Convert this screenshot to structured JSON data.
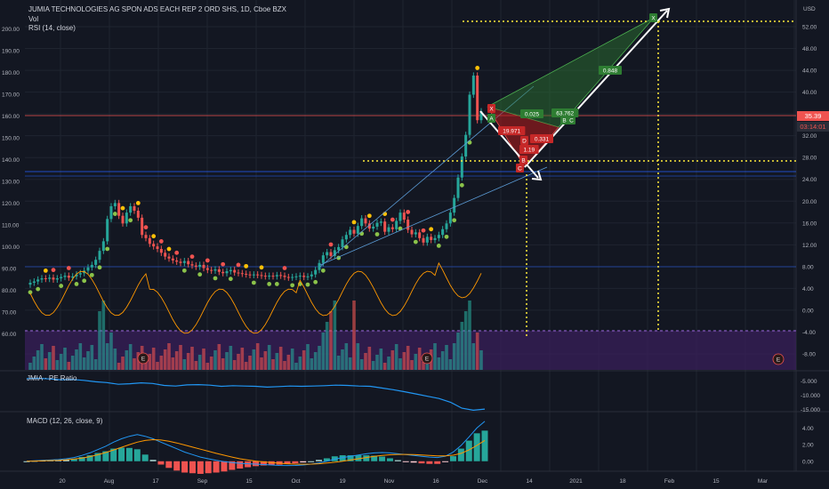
{
  "header": {
    "title": "JUMIA TECHNOLOGIES AG SPON ADS EACH REP 2 ORD SHS, 1D, Cboe BZX",
    "vol": "Vol",
    "rsi": "RSI (14, close)",
    "pe": "JMIA · PE Ratio",
    "macd": "MACD (12, 26, close, 9)"
  },
  "axes": {
    "currency": "USD",
    "right_price_ticks": [
      "52.00",
      "48.00",
      "44.00",
      "40.00",
      "36.00",
      "32.00",
      "28.00",
      "24.00",
      "20.00",
      "16.00",
      "12.00",
      "8.00",
      "4.00",
      "0.00",
      "-4.00",
      "-8.00"
    ],
    "left_rsi_ticks": [
      "200.00",
      "190.00",
      "180.00",
      "170.00",
      "160.00",
      "150.00",
      "140.00",
      "130.00",
      "120.00",
      "110.00",
      "100.00",
      "90.00",
      "80.00",
      "70.00",
      "60.00"
    ],
    "pe_ticks": [
      "-5.000",
      "-10.000",
      "-15.000"
    ],
    "macd_ticks": [
      "4.00",
      "2.00",
      "0.00"
    ],
    "x_ticks": [
      "20",
      "Aug",
      "17",
      "Sep",
      "15",
      "Oct",
      "19",
      "Nov",
      "16",
      "Dec",
      "14",
      "2021",
      "18",
      "Feb",
      "15",
      "Mar"
    ]
  },
  "badges": {
    "last_price": "35.39",
    "countdown": "03:14:01"
  },
  "pattern_labels": {
    "x_top": "X",
    "x_low": "X",
    "a": "A",
    "b": "B",
    "c": "C",
    "d": "D",
    "ratio_green1": "0.025",
    "ratio_green2": "63.762",
    "ratio_green3": "0.848",
    "ratio_red1": "19.971",
    "ratio_red2": "0.331",
    "ratio_red3": "1.19"
  },
  "earnings": [
    "E",
    "E",
    "E"
  ],
  "colors": {
    "up": "#26a69a",
    "down": "#ef5350",
    "background": "#131722",
    "grid": "#1f2430",
    "rsi_band": "#3b1f5c",
    "pattern_green": "#2e7d32",
    "pattern_red": "#b71c1c",
    "dotted_yellow": "#ffeb3b"
  },
  "chart_data": [
    {
      "type": "candlestick",
      "title": "JUMIA TECHNOLOGIES AG SPON ADS EACH REP 2 ORD SHS, 1D, Cboe BZX",
      "ylim": [
        -10,
        55
      ],
      "closes": [
        8.5,
        8.7,
        9.0,
        9.2,
        9.1,
        9.3,
        9.0,
        9.2,
        9.4,
        9.6,
        9.3,
        9.5,
        9.8,
        10.0,
        10.4,
        10.9,
        11.3,
        12.1,
        13.5,
        15.0,
        18.5,
        20.5,
        21.0,
        19.0,
        17.8,
        19.5,
        20.5,
        19.8,
        18.7,
        16.0,
        15.5,
        14.6,
        14.2,
        13.8,
        13.2,
        12.6,
        12.3,
        12.0,
        11.8,
        11.6,
        11.9,
        11.4,
        11.2,
        11.0,
        11.3,
        10.8,
        10.5,
        10.4,
        10.6,
        10.2,
        10.0,
        10.3,
        10.5,
        10.1,
        10.0,
        9.9,
        9.8,
        9.7,
        9.8,
        9.7,
        9.6,
        9.5,
        9.6,
        9.5,
        9.7,
        9.6,
        9.4,
        9.3,
        9.4,
        9.5,
        9.6,
        9.4,
        9.5,
        9.8,
        10.5,
        11.6,
        12.8,
        13.3,
        12.7,
        13.6,
        14.1,
        15.3,
        16.0,
        16.8,
        16.2,
        17.4,
        18.6,
        17.8,
        17.0,
        17.3,
        17.9,
        18.1,
        16.5,
        17.2,
        16.9,
        18.2,
        19.5,
        18.4,
        16.8,
        16.1,
        16.4,
        15.5,
        14.8,
        15.7,
        15.2,
        15.5,
        16.0,
        16.9,
        17.8,
        19.5,
        21.8,
        25.0,
        28.3,
        31.7,
        38.0,
        41.0,
        34.0,
        35.39
      ],
      "last": "35.39"
    },
    {
      "type": "line",
      "title": "JMIA · PE Ratio",
      "ylim": [
        -15,
        -3
      ],
      "values": [
        -4.2,
        -4.1,
        -4.3,
        -4.6,
        -4.5,
        -4.8,
        -5.3,
        -5.6,
        -6.2,
        -6.0,
        -5.7,
        -5.9,
        -6.6,
        -6.8,
        -6.4,
        -6.3,
        -6.5,
        -6.9,
        -6.7,
        -6.8,
        -6.9,
        -7.2,
        -7.0,
        -6.8,
        -6.9,
        -6.8,
        -6.7,
        -6.5,
        -6.6,
        -6.8,
        -6.9,
        -7.5,
        -8.1,
        -8.8,
        -9.6,
        -10.4,
        -11.2,
        -12.5,
        -14.6,
        -15.3,
        -14.9
      ]
    },
    {
      "type": "macd",
      "title": "MACD (12, 26, close, 9)",
      "ylim": [
        -1.2,
        5
      ],
      "macd": [
        0.0,
        0.05,
        0.1,
        0.15,
        0.2,
        0.3,
        0.45,
        0.7,
        1.0,
        1.4,
        1.8,
        2.3,
        2.7,
        3.0,
        3.2,
        3.0,
        2.7,
        2.3,
        1.9,
        1.5,
        1.1,
        0.8,
        0.5,
        0.3,
        0.1,
        -0.05,
        -0.15,
        -0.25,
        -0.3,
        -0.35,
        -0.4,
        -0.45,
        -0.5,
        -0.52,
        -0.5,
        -0.45,
        -0.35,
        -0.2,
        0.0,
        0.25,
        0.45,
        0.6,
        0.75,
        0.9,
        1.0,
        1.05,
        1.0,
        0.9,
        0.8,
        0.7,
        0.6,
        0.5,
        0.45,
        0.6,
        1.1,
        1.9,
        2.9,
        4.0,
        4.8
      ],
      "signal": [
        0.0,
        0.02,
        0.05,
        0.08,
        0.12,
        0.18,
        0.26,
        0.38,
        0.55,
        0.78,
        1.05,
        1.35,
        1.68,
        2.0,
        2.3,
        2.5,
        2.6,
        2.55,
        2.4,
        2.2,
        1.95,
        1.7,
        1.45,
        1.2,
        0.95,
        0.72,
        0.5,
        0.3,
        0.15,
        0.02,
        -0.08,
        -0.16,
        -0.24,
        -0.3,
        -0.34,
        -0.36,
        -0.35,
        -0.3,
        -0.22,
        -0.12,
        0.0,
        0.15,
        0.3,
        0.45,
        0.58,
        0.7,
        0.78,
        0.82,
        0.82,
        0.8,
        0.76,
        0.7,
        0.65,
        0.64,
        0.72,
        0.95,
        1.35,
        1.9,
        2.5
      ]
    }
  ]
}
